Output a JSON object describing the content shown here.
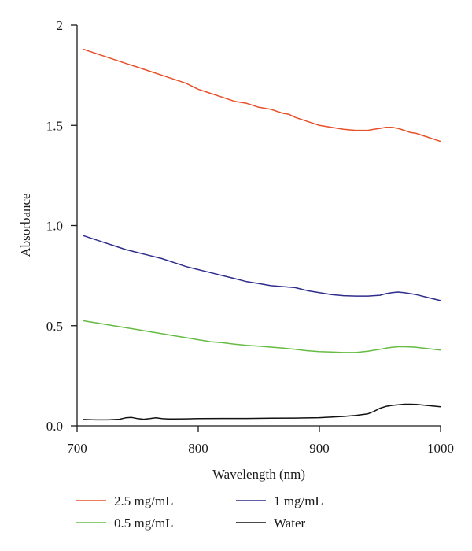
{
  "chart_data": {
    "type": "line",
    "xlabel": "Wavelength (nm)",
    "ylabel": "Absorbance",
    "xlim": [
      700,
      1000
    ],
    "ylim": [
      0.0,
      2.0
    ],
    "xticks": [
      700,
      800,
      900,
      1000
    ],
    "xtick_labels": [
      "700",
      "800",
      "900",
      "1000"
    ],
    "yticks": [
      0.0,
      0.5,
      1.0,
      1.5,
      2.0
    ],
    "ytick_labels": [
      "0.0",
      "0.5",
      "1.0",
      "1.5",
      "2"
    ],
    "grid": false,
    "legend_position": "bottom",
    "series": [
      {
        "name": "2.5 mg/mL",
        "color": "#e8502a",
        "x": [
          705,
          710,
          720,
          730,
          740,
          750,
          760,
          770,
          780,
          790,
          800,
          810,
          820,
          830,
          840,
          850,
          860,
          870,
          875,
          880,
          890,
          900,
          910,
          920,
          930,
          940,
          945,
          950,
          955,
          960,
          965,
          970,
          975,
          980,
          985,
          990,
          995,
          1000
        ],
        "y": [
          1.88,
          1.87,
          1.85,
          1.83,
          1.81,
          1.79,
          1.77,
          1.75,
          1.73,
          1.71,
          1.68,
          1.66,
          1.64,
          1.62,
          1.61,
          1.59,
          1.58,
          1.56,
          1.555,
          1.54,
          1.52,
          1.5,
          1.49,
          1.48,
          1.475,
          1.475,
          1.48,
          1.485,
          1.49,
          1.49,
          1.485,
          1.475,
          1.465,
          1.46,
          1.45,
          1.44,
          1.43,
          1.42
        ]
      },
      {
        "name": "1 mg/mL",
        "color": "#2e2d8c",
        "x": [
          705,
          710,
          720,
          730,
          740,
          750,
          760,
          770,
          780,
          790,
          800,
          810,
          820,
          830,
          840,
          850,
          860,
          870,
          880,
          890,
          900,
          910,
          920,
          930,
          940,
          950,
          955,
          960,
          965,
          970,
          975,
          980,
          990,
          1000
        ],
        "y": [
          0.95,
          0.94,
          0.92,
          0.9,
          0.88,
          0.865,
          0.85,
          0.835,
          0.815,
          0.795,
          0.78,
          0.765,
          0.75,
          0.735,
          0.72,
          0.71,
          0.7,
          0.695,
          0.69,
          0.675,
          0.665,
          0.655,
          0.65,
          0.648,
          0.648,
          0.652,
          0.66,
          0.665,
          0.668,
          0.665,
          0.66,
          0.655,
          0.64,
          0.625
        ]
      },
      {
        "name": "0.5 mg/mL",
        "color": "#66bb44",
        "x": [
          705,
          710,
          720,
          730,
          740,
          750,
          760,
          770,
          780,
          790,
          800,
          810,
          820,
          830,
          840,
          850,
          860,
          870,
          880,
          890,
          900,
          910,
          920,
          930,
          940,
          950,
          955,
          960,
          965,
          970,
          975,
          980,
          990,
          1000
        ],
        "y": [
          0.525,
          0.52,
          0.51,
          0.5,
          0.49,
          0.48,
          0.47,
          0.46,
          0.45,
          0.44,
          0.43,
          0.42,
          0.415,
          0.408,
          0.402,
          0.398,
          0.393,
          0.388,
          0.382,
          0.375,
          0.37,
          0.368,
          0.366,
          0.366,
          0.372,
          0.382,
          0.388,
          0.392,
          0.395,
          0.395,
          0.394,
          0.392,
          0.385,
          0.378
        ]
      },
      {
        "name": "Water",
        "color": "#111111",
        "x": [
          705,
          715,
          725,
          735,
          740,
          745,
          750,
          755,
          760,
          765,
          770,
          775,
          780,
          790,
          800,
          820,
          840,
          860,
          880,
          900,
          920,
          930,
          940,
          945,
          950,
          955,
          960,
          965,
          970,
          975,
          980,
          985,
          990,
          1000
        ],
        "y": [
          0.032,
          0.03,
          0.03,
          0.033,
          0.04,
          0.042,
          0.036,
          0.033,
          0.036,
          0.04,
          0.036,
          0.034,
          0.034,
          0.035,
          0.036,
          0.037,
          0.037,
          0.038,
          0.039,
          0.041,
          0.047,
          0.052,
          0.06,
          0.072,
          0.088,
          0.097,
          0.102,
          0.105,
          0.108,
          0.108,
          0.107,
          0.104,
          0.101,
          0.095
        ]
      }
    ]
  }
}
